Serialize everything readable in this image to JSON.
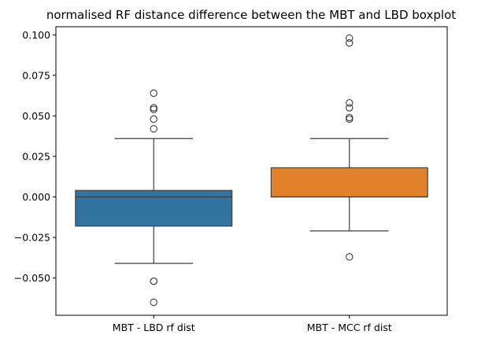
{
  "chart_data": {
    "type": "boxplot",
    "title": "normalised RF distance difference between the MBT and LBD boxplot",
    "xlabel": "",
    "ylabel": "",
    "ylim": [
      -0.073,
      0.105
    ],
    "yticks": [
      -0.05,
      -0.025,
      0.0,
      0.025,
      0.05,
      0.075,
      0.1
    ],
    "ytick_labels": [
      "−0.050",
      "−0.025",
      "0.000",
      "0.025",
      "0.050",
      "0.075",
      "0.100"
    ],
    "grid": false,
    "categories": [
      "MBT - LBD rf dist",
      "MBT - MCC rf dist"
    ],
    "boxes": [
      {
        "label": "MBT - LBD rf dist",
        "color": "#3274a1",
        "whisker_low": -0.041,
        "q1": -0.018,
        "median": 0.0,
        "q3": 0.004,
        "whisker_high": 0.036,
        "outliers": [
          0.064,
          0.054,
          0.055,
          0.048,
          0.042,
          -0.052,
          -0.052,
          -0.065
        ]
      },
      {
        "label": "MBT - MCC rf dist",
        "color": "#e1812c",
        "whisker_low": -0.021,
        "q1": 0.0,
        "median": 0.0,
        "q3": 0.018,
        "whisker_high": 0.036,
        "outliers": [
          0.098,
          0.095,
          0.058,
          0.055,
          0.048,
          0.049,
          -0.037
        ]
      }
    ]
  }
}
